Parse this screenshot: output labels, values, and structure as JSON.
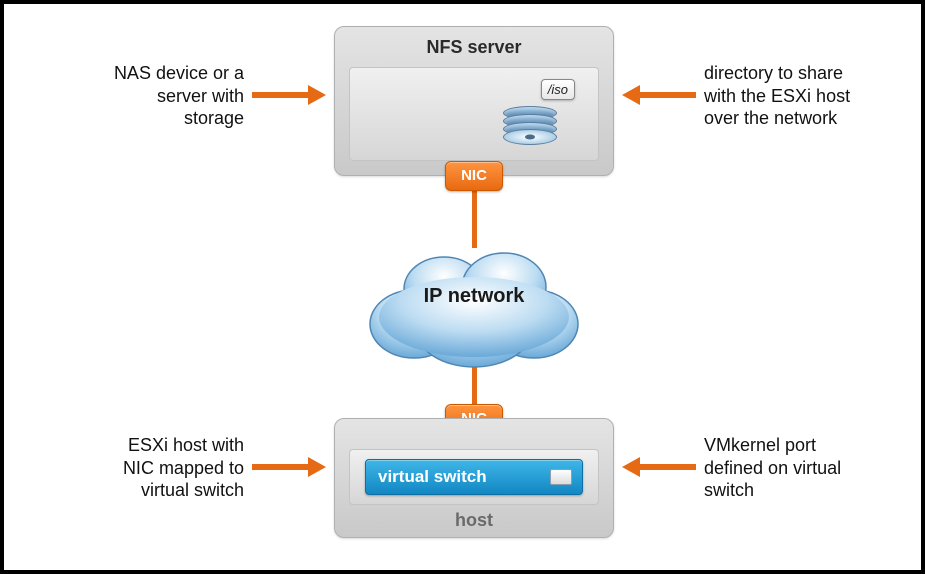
{
  "diagram": {
    "type": "network-infographic",
    "background_color": "#ffffff",
    "border_color": "#000000",
    "accent_color": "#e66a13",
    "box_bg_gradient": [
      "#e4e4e4",
      "#c9c9c9"
    ],
    "inner_bg_gradient": [
      "#f0f0f0",
      "#d6d6d6"
    ],
    "nic_gradient": [
      "#ff9440",
      "#e86a10"
    ],
    "vswitch_gradient": [
      "#3fb6e8",
      "#1287c3"
    ],
    "cloud_gradient": [
      "#ffffff",
      "#9fc9ea",
      "#6aa9d8"
    ],
    "text_color": "#111111",
    "title_fontsize": 18,
    "label_fontsize": 18
  },
  "server": {
    "title": "NFS server",
    "iso_label": "/iso",
    "nic_label": "NIC"
  },
  "cloud": {
    "label": "IP network"
  },
  "host": {
    "nic_label": "NIC",
    "vswitch_label": "virtual switch",
    "footer_label": "host"
  },
  "annotations": {
    "top_left": "NAS device or a\nserver with\nstorage",
    "top_right": "directory to share\nwith the ESXi host\nover the network",
    "bottom_left": "ESXi host with\nNIC mapped to\nvirtual switch",
    "bottom_right": "VMkernel port\ndefined on virtual\nswitch"
  }
}
